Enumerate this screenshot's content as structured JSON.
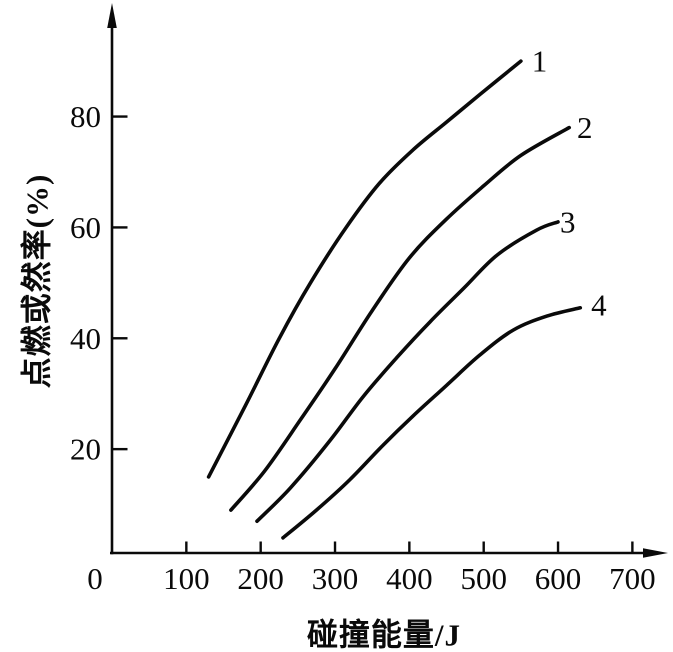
{
  "figure": {
    "background": "#ffffff",
    "ink_color": "#0a0a0a"
  },
  "chart_data": {
    "type": "line",
    "title": "",
    "xlabel": "碰撞能量/J",
    "ylabel": "点燃或然率(%)",
    "x_ticks": [
      0,
      100,
      200,
      300,
      400,
      500,
      600,
      700
    ],
    "y_ticks": [
      20,
      40,
      60,
      80
    ],
    "xlim": [
      0,
      760
    ],
    "ylim": [
      0,
      100
    ],
    "grid": false,
    "legend_position": "inline-right-of-curve-end",
    "series": [
      {
        "name": "1",
        "label": "1",
        "label_at": [
          575,
          90
        ],
        "points": [
          [
            130,
            15
          ],
          [
            180,
            28
          ],
          [
            225,
            40
          ],
          [
            267,
            50
          ],
          [
            315,
            60
          ],
          [
            360,
            68
          ],
          [
            405,
            74
          ],
          [
            450,
            79
          ],
          [
            495,
            84
          ],
          [
            550,
            90
          ]
        ]
      },
      {
        "name": "2",
        "label": "2",
        "label_at": [
          636,
          78
        ],
        "points": [
          [
            160,
            9
          ],
          [
            205,
            16
          ],
          [
            252,
            25
          ],
          [
            300,
            34.5
          ],
          [
            350,
            45
          ],
          [
            400,
            54.5
          ],
          [
            450,
            61.5
          ],
          [
            500,
            67.5
          ],
          [
            550,
            73
          ],
          [
            615,
            78
          ]
        ]
      },
      {
        "name": "3",
        "label": "3",
        "label_at": [
          613,
          61
        ],
        "points": [
          [
            195,
            7
          ],
          [
            240,
            13
          ],
          [
            293,
            21.5
          ],
          [
            338,
            29.5
          ],
          [
            383,
            36.5
          ],
          [
            428,
            43
          ],
          [
            473,
            49
          ],
          [
            518,
            55
          ],
          [
            571,
            59.5
          ],
          [
            600,
            61
          ]
        ]
      },
      {
        "name": "4",
        "label": "4",
        "label_at": [
          655,
          46
        ],
        "points": [
          [
            230,
            4
          ],
          [
            275,
            9
          ],
          [
            320,
            14.5
          ],
          [
            363,
            20.5
          ],
          [
            405,
            26
          ],
          [
            450,
            31.5
          ],
          [
            495,
            37
          ],
          [
            540,
            41.5
          ],
          [
            585,
            44
          ],
          [
            630,
            45.5
          ]
        ]
      }
    ]
  }
}
